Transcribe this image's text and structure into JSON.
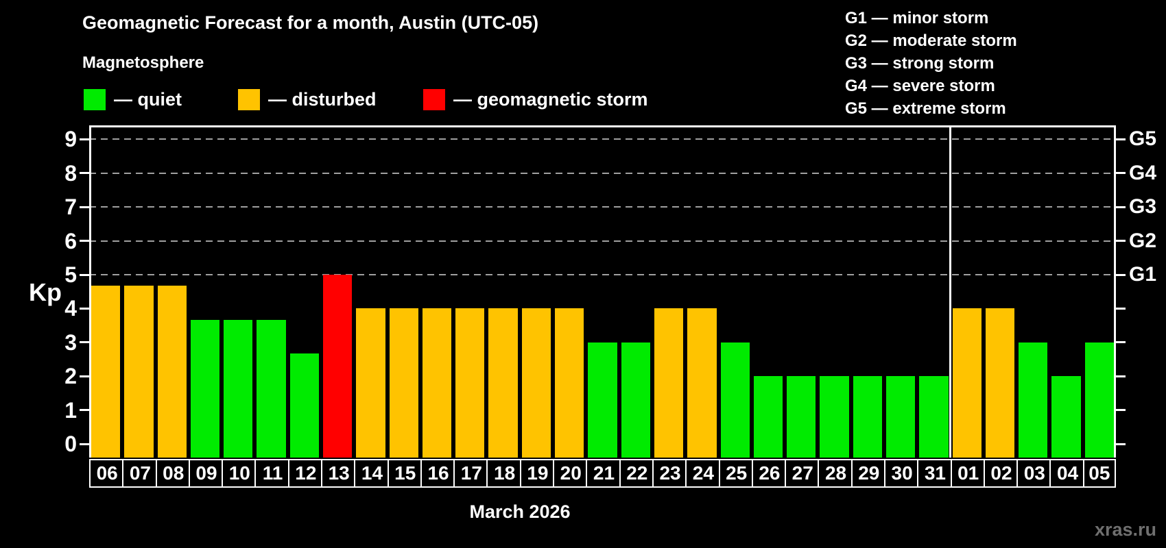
{
  "header": {
    "title": "Geomagnetic Forecast for a month, Austin (UTC-05)"
  },
  "magnetosphere_legend": {
    "title": "Magnetosphere",
    "items": [
      {
        "label": "— quiet",
        "status": "quiet",
        "color": "#00EB00"
      },
      {
        "label": "— disturbed",
        "status": "disturbed",
        "color": "#FFC300"
      },
      {
        "label": "— geomagnetic storm",
        "status": "storm",
        "color": "#FF0000"
      }
    ]
  },
  "g_scale_legend": [
    "G1 — minor storm",
    "G2 — moderate storm",
    "G3 — strong storm",
    "G4 — severe storm",
    "G5 — extreme storm"
  ],
  "watermark": "xras.ru",
  "chart_data": {
    "type": "bar",
    "title": "Geomagnetic Forecast for a month, Austin (UTC-05)",
    "xlabel": "March 2026",
    "ylabel": "Kp",
    "ylim": [
      -0.4,
      9.42
    ],
    "yticks": [
      0,
      1,
      2,
      3,
      4,
      5,
      6,
      7,
      8,
      9
    ],
    "gridlines_at": [
      5,
      6,
      7,
      8,
      9
    ],
    "right_axis_labels": [
      {
        "label": "G1",
        "kp": 5
      },
      {
        "label": "G2",
        "kp": 6
      },
      {
        "label": "G3",
        "kp": 7
      },
      {
        "label": "G4",
        "kp": 8
      },
      {
        "label": "G5",
        "kp": 9
      }
    ],
    "categories": [
      "06",
      "07",
      "08",
      "09",
      "10",
      "11",
      "12",
      "13",
      "14",
      "15",
      "16",
      "17",
      "18",
      "19",
      "20",
      "21",
      "22",
      "23",
      "24",
      "25",
      "26",
      "27",
      "28",
      "29",
      "30",
      "31",
      "01",
      "02",
      "03",
      "04",
      "05"
    ],
    "values": [
      4.67,
      4.67,
      4.67,
      3.67,
      3.67,
      3.67,
      2.67,
      5,
      4,
      4,
      4,
      4,
      4,
      4,
      4,
      3,
      3,
      4,
      4,
      3,
      2,
      2,
      2,
      2,
      2,
      2,
      4,
      4,
      3,
      2,
      3
    ],
    "statuses": [
      "disturbed",
      "disturbed",
      "disturbed",
      "quiet",
      "quiet",
      "quiet",
      "quiet",
      "storm",
      "disturbed",
      "disturbed",
      "disturbed",
      "disturbed",
      "disturbed",
      "disturbed",
      "disturbed",
      "quiet",
      "quiet",
      "disturbed",
      "disturbed",
      "quiet",
      "quiet",
      "quiet",
      "quiet",
      "quiet",
      "quiet",
      "quiet",
      "disturbed",
      "disturbed",
      "quiet",
      "quiet",
      "quiet"
    ],
    "colors": {
      "quiet": "#00EB00",
      "disturbed": "#FFC300",
      "storm": "#FF0000"
    },
    "month_separator_after_index": 25,
    "month_label": "March 2026",
    "legend_position": "top",
    "grid": "dashed"
  }
}
